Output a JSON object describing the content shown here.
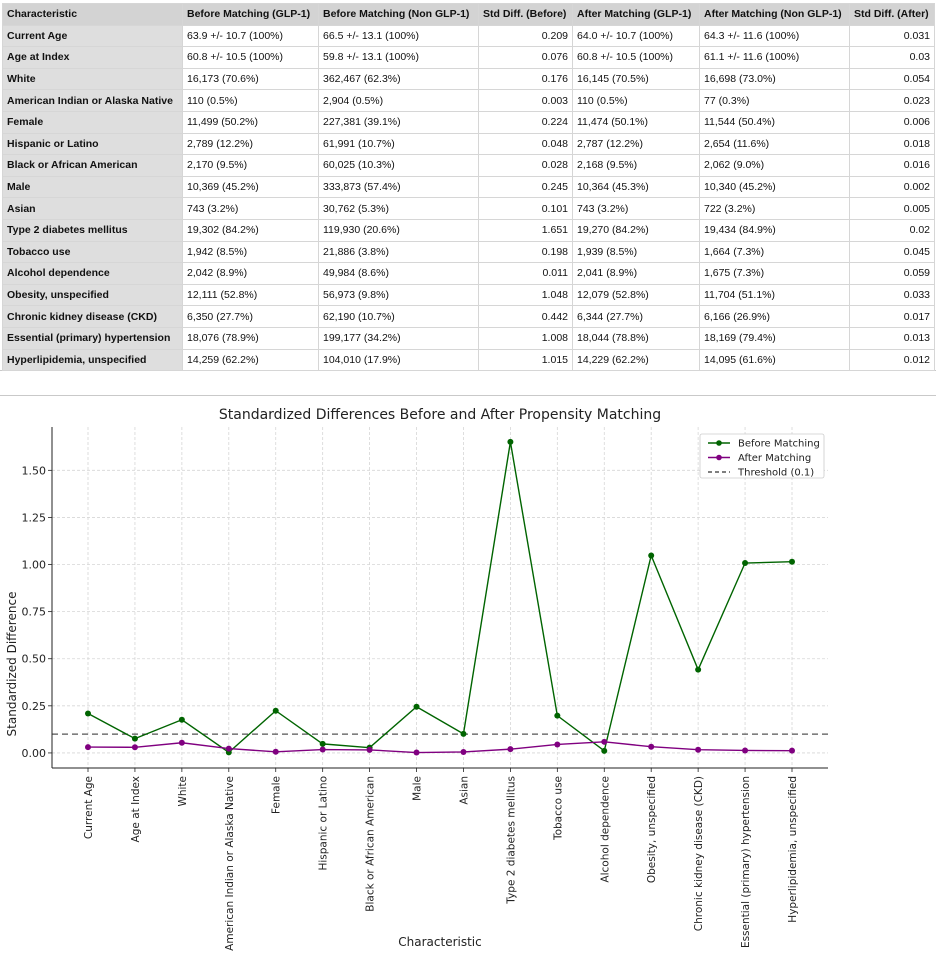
{
  "table": {
    "headers": [
      "Characteristic",
      "Before Matching (GLP-1)",
      "Before Matching (Non GLP-1)",
      "Std Diff. (Before)",
      "After Matching (GLP-1)",
      "After Matching (Non GLP-1)",
      "Std Diff. (After)"
    ],
    "rows": [
      [
        "Current Age",
        "63.9 +/- 10.7 (100%)",
        "66.5 +/- 13.1 (100%)",
        "0.209",
        "64.0 +/- 10.7 (100%)",
        "64.3 +/- 11.6 (100%)",
        "0.031"
      ],
      [
        "Age at Index",
        "60.8 +/- 10.5 (100%)",
        "59.8 +/- 13.1 (100%)",
        "0.076",
        "60.8 +/- 10.5 (100%)",
        "61.1 +/- 11.6 (100%)",
        "0.03"
      ],
      [
        "White",
        "16,173 (70.6%)",
        "362,467 (62.3%)",
        "0.176",
        "16,145 (70.5%)",
        "16,698 (73.0%)",
        "0.054"
      ],
      [
        "American Indian or Alaska Native",
        "110 (0.5%)",
        "2,904 (0.5%)",
        "0.003",
        "110 (0.5%)",
        "77 (0.3%)",
        "0.023"
      ],
      [
        "Female",
        "11,499 (50.2%)",
        "227,381 (39.1%)",
        "0.224",
        "11,474 (50.1%)",
        "11,544 (50.4%)",
        "0.006"
      ],
      [
        "Hispanic or Latino",
        "2,789 (12.2%)",
        "61,991 (10.7%)",
        "0.048",
        "2,787 (12.2%)",
        "2,654 (11.6%)",
        "0.018"
      ],
      [
        "Black or African American",
        "2,170 (9.5%)",
        "60,025 (10.3%)",
        "0.028",
        "2,168 (9.5%)",
        "2,062 (9.0%)",
        "0.016"
      ],
      [
        "Male",
        "10,369 (45.2%)",
        "333,873 (57.4%)",
        "0.245",
        "10,364 (45.3%)",
        "10,340 (45.2%)",
        "0.002"
      ],
      [
        "Asian",
        "743 (3.2%)",
        "30,762 (5.3%)",
        "0.101",
        "743 (3.2%)",
        "722 (3.2%)",
        "0.005"
      ],
      [
        "Type 2 diabetes mellitus",
        "19,302 (84.2%)",
        "119,930 (20.6%)",
        "1.651",
        "19,270 (84.2%)",
        "19,434 (84.9%)",
        "0.02"
      ],
      [
        "Tobacco use",
        "1,942 (8.5%)",
        "21,886 (3.8%)",
        "0.198",
        "1,939 (8.5%)",
        "1,664 (7.3%)",
        "0.045"
      ],
      [
        "Alcohol dependence",
        "2,042 (8.9%)",
        "49,984 (8.6%)",
        "0.011",
        "2,041 (8.9%)",
        "1,675 (7.3%)",
        "0.059"
      ],
      [
        "Obesity, unspecified",
        "12,111 (52.8%)",
        "56,973 (9.8%)",
        "1.048",
        "12,079 (52.8%)",
        "11,704 (51.1%)",
        "0.033"
      ],
      [
        "Chronic kidney disease (CKD)",
        "6,350 (27.7%)",
        "62,190 (10.7%)",
        "0.442",
        "6,344 (27.7%)",
        "6,166 (26.9%)",
        "0.017"
      ],
      [
        "Essential (primary) hypertension",
        "18,076 (78.9%)",
        "199,177 (34.2%)",
        "1.008",
        "18,044 (78.8%)",
        "18,169 (79.4%)",
        "0.013"
      ],
      [
        "Hyperlipidemia, unspecified",
        "14,259 (62.2%)",
        "104,010 (17.9%)",
        "1.015",
        "14,229 (62.2%)",
        "14,095 (61.6%)",
        "0.012"
      ]
    ]
  },
  "chart_data": {
    "type": "line",
    "title": "Standardized Differences Before and After Propensity Matching",
    "xlabel": "Characteristic",
    "ylabel": "Standardized Difference",
    "categories": [
      "Current Age",
      "Age at Index",
      "White",
      "American Indian or Alaska Native",
      "Female",
      "Hispanic or Latino",
      "Black or African American",
      "Male",
      "Asian",
      "Type 2 diabetes mellitus",
      "Tobacco use",
      "Alcohol dependence",
      "Obesity, unspecified",
      "Chronic kidney disease (CKD)",
      "Essential (primary) hypertension",
      "Hyperlipidemia, unspecified"
    ],
    "series": [
      {
        "name": "Before Matching",
        "color": "#006400",
        "values": [
          0.209,
          0.076,
          0.176,
          0.003,
          0.224,
          0.048,
          0.028,
          0.245,
          0.101,
          1.651,
          0.198,
          0.011,
          1.048,
          0.442,
          1.008,
          1.015
        ]
      },
      {
        "name": "After Matching",
        "color": "#800080",
        "values": [
          0.031,
          0.03,
          0.054,
          0.023,
          0.006,
          0.018,
          0.016,
          0.002,
          0.005,
          0.02,
          0.045,
          0.059,
          0.033,
          0.017,
          0.013,
          0.012
        ]
      }
    ],
    "threshold": {
      "name": "Threshold (0.1)",
      "value": 0.1,
      "color": "#555555",
      "style": "dashed"
    },
    "yticks": [
      "0.00",
      "0.25",
      "0.50",
      "0.75",
      "1.00",
      "1.25",
      "1.50"
    ],
    "ylim": [
      -0.08,
      1.73
    ],
    "grid": true,
    "legend": "top-right"
  }
}
